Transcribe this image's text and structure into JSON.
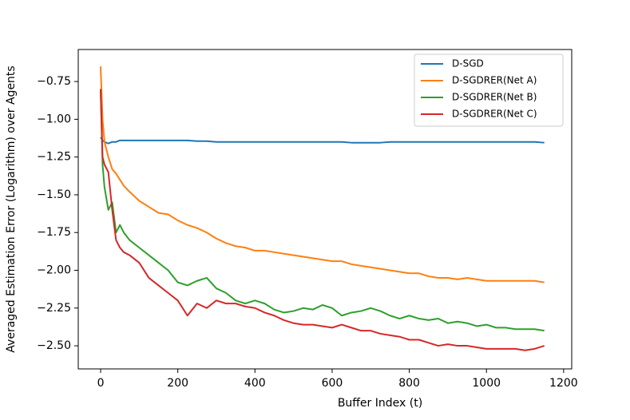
{
  "chart_data": {
    "type": "line",
    "x_label": "Buffer Index (t)",
    "y_label": "Averaged Estimation Error (Logarithm) over Agents",
    "x": [
      0,
      5,
      10,
      20,
      30,
      40,
      50,
      60,
      75,
      100,
      125,
      150,
      175,
      200,
      225,
      250,
      275,
      300,
      325,
      350,
      375,
      400,
      425,
      450,
      475,
      500,
      525,
      550,
      575,
      600,
      625,
      650,
      675,
      700,
      725,
      750,
      775,
      800,
      825,
      850,
      875,
      900,
      925,
      950,
      975,
      1000,
      1025,
      1050,
      1075,
      1100,
      1125,
      1150
    ],
    "series": [
      {
        "name": "D-SGD",
        "color": "#1f77b4",
        "values": [
          -1.12,
          -1.14,
          -1.15,
          -1.16,
          -1.15,
          -1.15,
          -1.14,
          -1.14,
          -1.14,
          -1.14,
          -1.14,
          -1.14,
          -1.14,
          -1.14,
          -1.14,
          -1.145,
          -1.145,
          -1.15,
          -1.15,
          -1.15,
          -1.15,
          -1.15,
          -1.15,
          -1.15,
          -1.15,
          -1.15,
          -1.15,
          -1.15,
          -1.15,
          -1.15,
          -1.15,
          -1.155,
          -1.155,
          -1.155,
          -1.155,
          -1.15,
          -1.15,
          -1.15,
          -1.15,
          -1.15,
          -1.15,
          -1.15,
          -1.15,
          -1.15,
          -1.15,
          -1.15,
          -1.15,
          -1.15,
          -1.15,
          -1.15,
          -1.15,
          -1.155
        ]
      },
      {
        "name": "D-SGDRER(Net A)",
        "color": "#ff7f0e",
        "values": [
          -0.65,
          -1.0,
          -1.15,
          -1.25,
          -1.33,
          -1.36,
          -1.4,
          -1.44,
          -1.48,
          -1.54,
          -1.58,
          -1.62,
          -1.63,
          -1.67,
          -1.7,
          -1.72,
          -1.75,
          -1.79,
          -1.82,
          -1.84,
          -1.85,
          -1.87,
          -1.87,
          -1.88,
          -1.89,
          -1.9,
          -1.91,
          -1.92,
          -1.93,
          -1.94,
          -1.94,
          -1.96,
          -1.97,
          -1.98,
          -1.99,
          -2.0,
          -2.01,
          -2.02,
          -2.02,
          -2.04,
          -2.05,
          -2.05,
          -2.06,
          -2.05,
          -2.06,
          -2.07,
          -2.07,
          -2.07,
          -2.07,
          -2.07,
          -2.07,
          -2.08
        ]
      },
      {
        "name": "D-SGDRER(Net B)",
        "color": "#2ca02c",
        "values": [
          -0.8,
          -1.3,
          -1.45,
          -1.6,
          -1.55,
          -1.75,
          -1.7,
          -1.75,
          -1.8,
          -1.85,
          -1.9,
          -1.95,
          -2.0,
          -2.08,
          -2.1,
          -2.07,
          -2.05,
          -2.12,
          -2.15,
          -2.2,
          -2.22,
          -2.2,
          -2.22,
          -2.26,
          -2.28,
          -2.27,
          -2.25,
          -2.26,
          -2.23,
          -2.25,
          -2.3,
          -2.28,
          -2.27,
          -2.25,
          -2.27,
          -2.3,
          -2.32,
          -2.3,
          -2.32,
          -2.33,
          -2.32,
          -2.35,
          -2.34,
          -2.35,
          -2.37,
          -2.36,
          -2.38,
          -2.38,
          -2.39,
          -2.39,
          -2.39,
          -2.4
        ]
      },
      {
        "name": "D-SGDRER(Net C)",
        "color": "#d62728",
        "values": [
          -0.8,
          -1.25,
          -1.3,
          -1.35,
          -1.6,
          -1.8,
          -1.85,
          -1.88,
          -1.9,
          -1.95,
          -2.05,
          -2.1,
          -2.15,
          -2.2,
          -2.3,
          -2.22,
          -2.25,
          -2.2,
          -2.22,
          -2.22,
          -2.24,
          -2.25,
          -2.28,
          -2.3,
          -2.33,
          -2.35,
          -2.36,
          -2.36,
          -2.37,
          -2.38,
          -2.36,
          -2.38,
          -2.4,
          -2.4,
          -2.42,
          -2.43,
          -2.44,
          -2.46,
          -2.46,
          -2.48,
          -2.5,
          -2.49,
          -2.5,
          -2.5,
          -2.51,
          -2.52,
          -2.52,
          -2.52,
          -2.52,
          -2.53,
          -2.52,
          -2.5
        ]
      }
    ],
    "xlim": [
      -58,
      1221
    ],
    "ylim": [
      -2.653,
      -0.538
    ],
    "xticks": [
      0,
      200,
      400,
      600,
      800,
      1000,
      1200
    ],
    "yticks": [
      {
        "value": -2.5,
        "label": "−2.50"
      },
      {
        "value": -2.25,
        "label": "−2.25"
      },
      {
        "value": -2.0,
        "label": "−2.00"
      },
      {
        "value": -1.75,
        "label": "−1.75"
      },
      {
        "value": -1.5,
        "label": "−1.50"
      },
      {
        "value": -1.25,
        "label": "−1.25"
      },
      {
        "value": -1.0,
        "label": "−1.00"
      },
      {
        "value": -0.75,
        "label": "−0.75"
      }
    ],
    "legend_loc": "upper right"
  }
}
